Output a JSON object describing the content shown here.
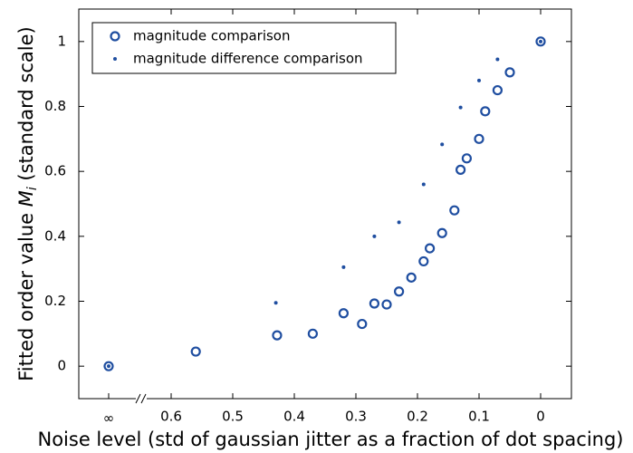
{
  "chart_data": {
    "type": "scatter",
    "xlabel": "Noise level (std of gaussian jitter as a fraction of dot spacing)",
    "ylabel": [
      "Fitted order value ",
      "M",
      "i",
      " (standard scale)"
    ],
    "xlim": [
      0.75,
      -0.05
    ],
    "ylim": [
      -0.1,
      1.1
    ],
    "xticks": [
      0.6,
      0.5,
      0.4,
      0.3,
      0.2,
      0.1,
      0
    ],
    "yticks": [
      0,
      0.2,
      0.4,
      0.6,
      0.8,
      1
    ],
    "break_label": "∞",
    "legend": "upper left",
    "series": [
      {
        "name": "magnitude comparison",
        "marker": "ring",
        "color": "#1f4ea0",
        "x": [
          null,
          0.56,
          0.428,
          0.37,
          0.32,
          0.29,
          0.27,
          0.25,
          0.23,
          0.21,
          0.19,
          0.18,
          0.16,
          0.14,
          0.13,
          0.12,
          0.1,
          0.09,
          0.07,
          0.05,
          0
        ],
        "values": [
          0,
          0.045,
          0.095,
          0.1,
          0.163,
          0.13,
          0.193,
          0.19,
          0.23,
          0.273,
          0.323,
          0.363,
          0.41,
          0.48,
          0.605,
          0.64,
          0.7,
          0.785,
          0.85,
          0.905,
          1.0
        ]
      },
      {
        "name": "magnitude difference comparison",
        "marker": "dot",
        "color": "#1f4ea0",
        "x": [
          null,
          0.43,
          0.32,
          0.27,
          0.23,
          0.19,
          0.16,
          0.13,
          0.1,
          0.07,
          0
        ],
        "values": [
          0,
          0.195,
          0.305,
          0.4,
          0.443,
          0.56,
          0.683,
          0.797,
          0.88,
          0.945,
          1.0
        ]
      }
    ]
  }
}
